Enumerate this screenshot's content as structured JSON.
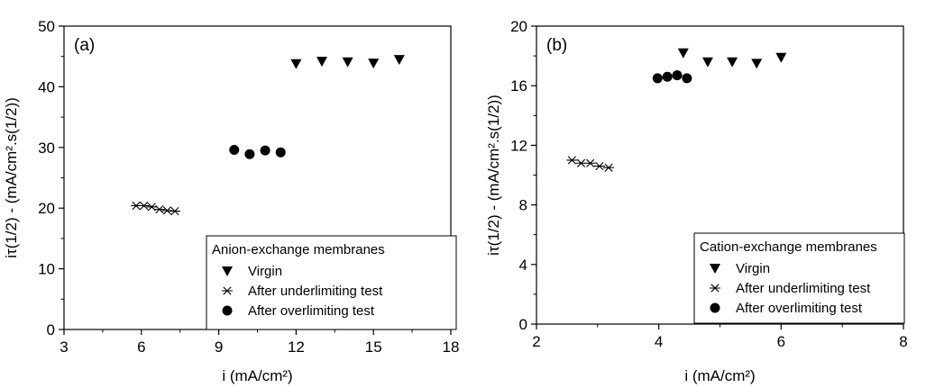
{
  "chart_data": [
    {
      "type": "scatter",
      "panel_label": "(a)",
      "xlabel": "i (mA/cm²)",
      "ylabel": "iτ(1/2) - (mA/cm².s(1/2))",
      "xlim": [
        3,
        18
      ],
      "ylim": [
        0,
        50
      ],
      "xticks": [
        "3",
        "6",
        "9",
        "12",
        "15",
        "18"
      ],
      "yticks": [
        "0",
        "10",
        "20",
        "30",
        "40",
        "50"
      ],
      "grid": false,
      "legend_title": "Anion-exchange membranes",
      "legend_position": "bottom-right",
      "series": [
        {
          "name": "Virgin",
          "marker": "triangle-down",
          "x": [
            12.0,
            13.0,
            14.0,
            15.0,
            16.0
          ],
          "y": [
            43.8,
            44.2,
            44.1,
            43.9,
            44.5
          ]
        },
        {
          "name": "After underlimiting test",
          "marker": "asterisk",
          "x": [
            5.8,
            6.1,
            6.4,
            6.7,
            7.0,
            7.3
          ],
          "y": [
            20.4,
            20.4,
            20.2,
            19.8,
            19.6,
            19.5
          ]
        },
        {
          "name": "After overlimiting test",
          "marker": "circle",
          "x": [
            9.6,
            10.2,
            10.8,
            11.4
          ],
          "y": [
            29.6,
            28.9,
            29.5,
            29.2
          ]
        }
      ]
    },
    {
      "type": "scatter",
      "panel_label": "(b)",
      "xlabel": "i (mA/cm²)",
      "ylabel": "iτ(1/2) - (mA/cm².s(1/2))",
      "xlim": [
        2,
        8
      ],
      "ylim": [
        0,
        20
      ],
      "xticks": [
        "2",
        "4",
        "6",
        "8"
      ],
      "yticks": [
        "0",
        "4",
        "8",
        "12",
        "16",
        "20"
      ],
      "grid": false,
      "legend_title": "Cation-exchange membranes",
      "legend_position": "bottom-right",
      "series": [
        {
          "name": "Virgin",
          "marker": "triangle-down",
          "x": [
            4.4,
            4.8,
            5.2,
            5.6,
            6.0
          ],
          "y": [
            18.2,
            17.6,
            17.6,
            17.5,
            17.9
          ]
        },
        {
          "name": "After underlimiting test",
          "marker": "asterisk",
          "x": [
            2.58,
            2.73,
            2.88,
            3.03,
            3.18
          ],
          "y": [
            11.0,
            10.8,
            10.8,
            10.6,
            10.5
          ]
        },
        {
          "name": "After overlimiting test",
          "marker": "circle",
          "x": [
            3.98,
            4.14,
            4.3,
            4.46
          ],
          "y": [
            16.5,
            16.6,
            16.7,
            16.5
          ]
        }
      ]
    }
  ]
}
